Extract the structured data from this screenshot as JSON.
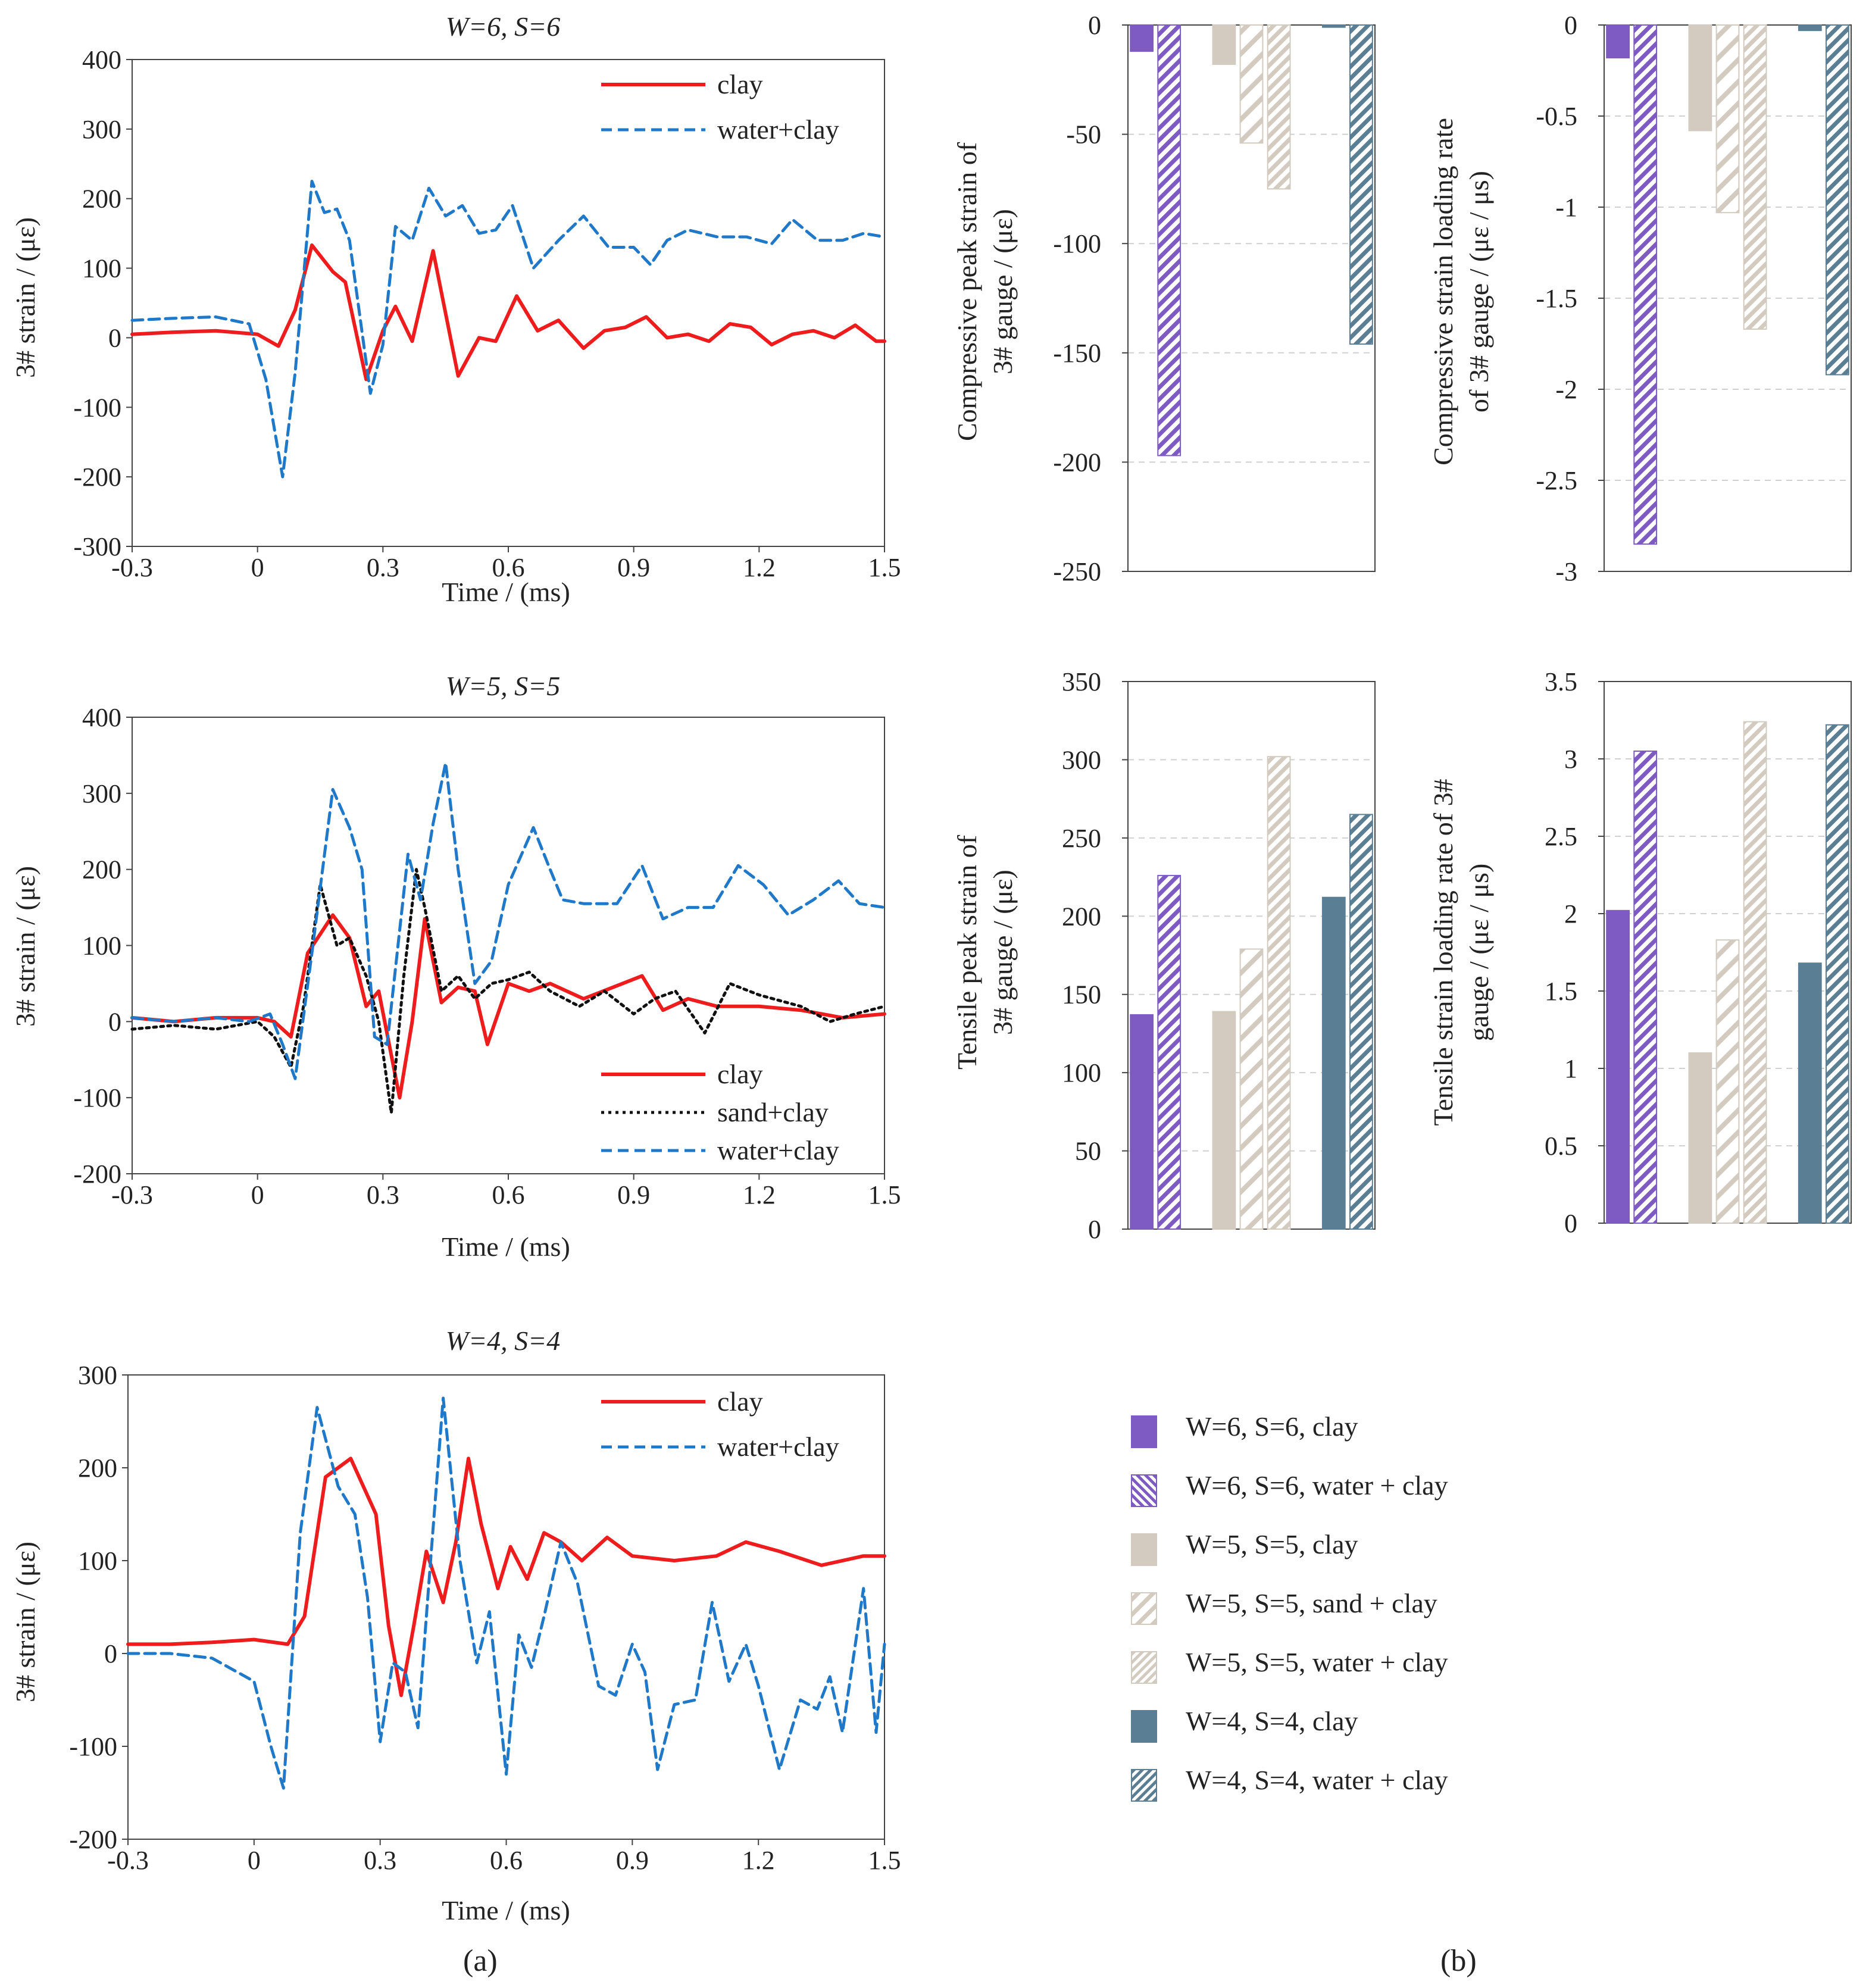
{
  "panel_labels": {
    "a": "(a)",
    "b": "(b)"
  },
  "colors": {
    "clay_line": "#ee1c1c",
    "water_line": "#1f78c8",
    "sand_line": "#111111",
    "w6": "#7e5bc2",
    "w5": "#d3cbc0",
    "w4": "#5a7f95"
  },
  "legend_b": [
    {
      "label": "W=6, S=6, clay",
      "color": "#7e5bc2",
      "pattern": "solid"
    },
    {
      "label": "W=6, S=6, water + clay",
      "color": "#7e5bc2",
      "pattern": "hatch-dense"
    },
    {
      "label": "W=5, S=5, clay",
      "color": "#d3cbc0",
      "pattern": "solid"
    },
    {
      "label": "W=5, S=5, sand + clay",
      "color": "#d3cbc0",
      "pattern": "hatch-sparse"
    },
    {
      "label": "W=5, S=5, water + clay",
      "color": "#d3cbc0",
      "pattern": "hatch-dense"
    },
    {
      "label": "W=4, S=4, clay",
      "color": "#5a7f95",
      "pattern": "solid"
    },
    {
      "label": "W=4, S=4, water + clay",
      "color": "#5a7f95",
      "pattern": "hatch-dense"
    }
  ],
  "chart_data": [
    {
      "id": "lineA",
      "type": "line",
      "title": "W=6, S=6",
      "xlabel": "Time / (ms)",
      "ylabel": "3# strain / (με)",
      "xlim": [
        -0.3,
        1.5
      ],
      "ylim": [
        -300,
        400
      ],
      "xticks": [
        -0.3,
        0,
        0.3,
        0.6,
        0.9,
        1.2,
        1.5
      ],
      "yticks": [
        -300,
        -200,
        -100,
        0,
        100,
        200,
        300,
        400
      ],
      "xtick_labels": [
        "-0.3",
        "0",
        "0.3",
        "0.6",
        "0.9",
        "1.2",
        "1.5"
      ],
      "ytick_labels": [
        "-300",
        "-200",
        "-100",
        "0",
        "100",
        "200",
        "300",
        "400"
      ],
      "series": [
        {
          "name": "clay",
          "style": "solid",
          "color": "#ee1c1c",
          "x": [
            -0.3,
            -0.2,
            -0.1,
            0,
            0.05,
            0.09,
            0.13,
            0.18,
            0.21,
            0.26,
            0.3,
            0.33,
            0.37,
            0.42,
            0.48,
            0.53,
            0.57,
            0.62,
            0.67,
            0.72,
            0.78,
            0.83,
            0.88,
            0.93,
            0.98,
            1.03,
            1.08,
            1.13,
            1.18,
            1.23,
            1.28,
            1.33,
            1.38,
            1.43,
            1.48,
            1.5
          ],
          "values": [
            5,
            8,
            10,
            5,
            -12,
            40,
            133,
            95,
            80,
            -60,
            10,
            45,
            -5,
            125,
            -55,
            0,
            -5,
            60,
            10,
            25,
            -15,
            10,
            15,
            30,
            0,
            5,
            -5,
            20,
            15,
            -10,
            5,
            10,
            0,
            18,
            -5,
            -5
          ]
        },
        {
          "name": "water+clay",
          "style": "dashed",
          "color": "#1f78c8",
          "x": [
            -0.3,
            -0.2,
            -0.1,
            -0.02,
            0.02,
            0.06,
            0.09,
            0.13,
            0.16,
            0.19,
            0.22,
            0.27,
            0.3,
            0.33,
            0.37,
            0.41,
            0.45,
            0.49,
            0.53,
            0.57,
            0.61,
            0.66,
            0.72,
            0.78,
            0.84,
            0.9,
            0.94,
            0.98,
            1.03,
            1.1,
            1.17,
            1.23,
            1.28,
            1.34,
            1.4,
            1.45,
            1.5
          ],
          "values": [
            25,
            28,
            30,
            20,
            -60,
            -200,
            -50,
            225,
            180,
            185,
            140,
            -80,
            -10,
            160,
            140,
            215,
            175,
            190,
            150,
            155,
            190,
            100,
            140,
            175,
            130,
            130,
            105,
            140,
            155,
            145,
            145,
            135,
            170,
            140,
            140,
            150,
            145
          ]
        }
      ],
      "legend": [
        {
          "label": "clay",
          "style": "solid",
          "color": "#ee1c1c"
        },
        {
          "label": "water+clay",
          "style": "dashed",
          "color": "#1f78c8"
        }
      ]
    },
    {
      "id": "lineB",
      "type": "line",
      "title": "W=5, S=5",
      "xlabel": "Time / (ms)",
      "ylabel": "3# strain / (με)",
      "xlim": [
        -0.3,
        1.5
      ],
      "ylim": [
        -200,
        400
      ],
      "xticks": [
        -0.3,
        0,
        0.3,
        0.6,
        0.9,
        1.2,
        1.5
      ],
      "yticks": [
        -200,
        -100,
        0,
        100,
        200,
        300,
        400
      ],
      "xtick_labels": [
        "-0.3",
        "0",
        "0.3",
        "0.6",
        "0.9",
        "1.2",
        "1.5"
      ],
      "ytick_labels": [
        "-200",
        "-100",
        "0",
        "100",
        "200",
        "300",
        "400"
      ],
      "series": [
        {
          "name": "clay",
          "style": "solid",
          "color": "#ee1c1c",
          "x": [
            -0.3,
            -0.2,
            -0.1,
            0,
            0.04,
            0.08,
            0.12,
            0.18,
            0.22,
            0.26,
            0.29,
            0.34,
            0.37,
            0.4,
            0.44,
            0.48,
            0.52,
            0.55,
            0.6,
            0.65,
            0.7,
            0.78,
            0.85,
            0.92,
            0.97,
            1.03,
            1.1,
            1.2,
            1.3,
            1.4,
            1.5
          ],
          "values": [
            5,
            0,
            5,
            5,
            0,
            -20,
            90,
            140,
            110,
            20,
            40,
            -100,
            0,
            135,
            25,
            45,
            40,
            -30,
            50,
            40,
            50,
            30,
            45,
            60,
            15,
            30,
            20,
            20,
            15,
            5,
            10
          ]
        },
        {
          "name": "sand+clay",
          "style": "dotted",
          "color": "#111111",
          "x": [
            -0.3,
            -0.2,
            -0.1,
            0,
            0.04,
            0.08,
            0.11,
            0.15,
            0.19,
            0.22,
            0.26,
            0.29,
            0.32,
            0.35,
            0.38,
            0.4,
            0.44,
            0.48,
            0.52,
            0.56,
            0.6,
            0.65,
            0.7,
            0.77,
            0.83,
            0.9,
            0.95,
            1.0,
            1.07,
            1.13,
            1.2,
            1.3,
            1.37,
            1.43,
            1.5
          ],
          "values": [
            -10,
            -5,
            -10,
            0,
            -20,
            -60,
            20,
            180,
            100,
            110,
            60,
            0,
            -120,
            60,
            200,
            150,
            40,
            60,
            30,
            50,
            55,
            65,
            40,
            20,
            40,
            10,
            30,
            40,
            -15,
            50,
            35,
            20,
            0,
            10,
            20
          ]
        },
        {
          "name": "water+clay",
          "style": "dashed",
          "color": "#1f78c8",
          "x": [
            -0.3,
            -0.2,
            -0.1,
            -0.02,
            0.03,
            0.06,
            0.09,
            0.13,
            0.18,
            0.22,
            0.25,
            0.28,
            0.31,
            0.36,
            0.39,
            0.42,
            0.45,
            0.48,
            0.52,
            0.56,
            0.6,
            0.66,
            0.7,
            0.73,
            0.78,
            0.86,
            0.92,
            0.97,
            1.03,
            1.09,
            1.15,
            1.21,
            1.27,
            1.33,
            1.39,
            1.44,
            1.5
          ],
          "values": [
            5,
            0,
            5,
            0,
            10,
            -30,
            -75,
            90,
            305,
            255,
            200,
            -20,
            -30,
            220,
            160,
            260,
            340,
            200,
            50,
            80,
            180,
            255,
            200,
            160,
            155,
            155,
            205,
            135,
            150,
            150,
            205,
            180,
            140,
            160,
            185,
            155,
            150
          ]
        }
      ],
      "legend": [
        {
          "label": "clay",
          "style": "solid",
          "color": "#ee1c1c"
        },
        {
          "label": "sand+clay",
          "style": "dotted",
          "color": "#111111"
        },
        {
          "label": "water+clay",
          "style": "dashed",
          "color": "#1f78c8"
        }
      ]
    },
    {
      "id": "lineC",
      "type": "line",
      "title": "W=4, S=4",
      "xlabel": "Time / (ms)",
      "ylabel": "3# strain / (με)",
      "xlim": [
        -0.3,
        1.5
      ],
      "ylim": [
        -200,
        300
      ],
      "xticks": [
        -0.3,
        0,
        0.3,
        0.6,
        0.9,
        1.2,
        1.5
      ],
      "yticks": [
        -200,
        -100,
        0,
        100,
        200,
        300
      ],
      "xtick_labels": [
        "-0.3",
        "0",
        "0.3",
        "0.6",
        "0.9",
        "1.2",
        "1.5"
      ],
      "ytick_labels": [
        "-200",
        "-100",
        "0",
        "100",
        "200",
        "300"
      ],
      "series": [
        {
          "name": "clay",
          "style": "solid",
          "color": "#ee1c1c",
          "x": [
            -0.3,
            -0.2,
            -0.1,
            0,
            0.08,
            0.12,
            0.17,
            0.23,
            0.29,
            0.32,
            0.35,
            0.38,
            0.41,
            0.45,
            0.48,
            0.51,
            0.54,
            0.58,
            0.61,
            0.65,
            0.69,
            0.73,
            0.78,
            0.84,
            0.9,
            1.0,
            1.1,
            1.17,
            1.25,
            1.35,
            1.45,
            1.5
          ],
          "values": [
            10,
            10,
            12,
            15,
            10,
            40,
            190,
            210,
            150,
            30,
            -45,
            30,
            110,
            55,
            120,
            210,
            140,
            70,
            115,
            80,
            130,
            120,
            100,
            125,
            105,
            100,
            105,
            120,
            110,
            95,
            105,
            105
          ]
        },
        {
          "name": "water+clay",
          "style": "dashed",
          "color": "#1f78c8",
          "x": [
            -0.3,
            -0.2,
            -0.1,
            0,
            0.04,
            0.07,
            0.11,
            0.15,
            0.2,
            0.24,
            0.27,
            0.3,
            0.33,
            0.36,
            0.39,
            0.42,
            0.45,
            0.49,
            0.53,
            0.56,
            0.6,
            0.63,
            0.66,
            0.69,
            0.73,
            0.77,
            0.82,
            0.86,
            0.9,
            0.93,
            0.96,
            1.0,
            1.05,
            1.09,
            1.13,
            1.17,
            1.2,
            1.25,
            1.3,
            1.34,
            1.37,
            1.4,
            1.45,
            1.48,
            1.5
          ],
          "values": [
            0,
            0,
            -5,
            -30,
            -100,
            -145,
            130,
            265,
            180,
            150,
            60,
            -95,
            -10,
            -20,
            -80,
            100,
            275,
            100,
            -10,
            45,
            -130,
            20,
            -15,
            40,
            120,
            75,
            -35,
            -45,
            10,
            -20,
            -125,
            -55,
            -50,
            55,
            -30,
            10,
            -35,
            -125,
            -50,
            -60,
            -25,
            -85,
            70,
            -85,
            10
          ]
        }
      ],
      "legend": [
        {
          "label": "clay",
          "style": "solid",
          "color": "#ee1c1c"
        },
        {
          "label": "water+clay",
          "style": "dashed",
          "color": "#1f78c8"
        }
      ]
    },
    {
      "id": "bar1",
      "type": "bar",
      "ylabel_lines": [
        "Compressive peak strain of",
        "3# gauge / (με)"
      ],
      "ylim": [
        -250,
        0
      ],
      "yticks": [
        -250,
        -200,
        -150,
        -100,
        -50,
        0
      ],
      "ytick_labels": [
        "-250",
        "-200",
        "-150",
        "-100",
        "-50",
        "0"
      ],
      "series_names": [
        "W=6, S=6, clay",
        "W=6, S=6, water + clay",
        "W=5, S=5, clay",
        "W=5, S=5, sand + clay",
        "W=5, S=5, water + clay",
        "W=4, S=4, clay",
        "W=4, S=4, water + clay"
      ],
      "values": [
        -12,
        -197,
        -18,
        -54,
        -75,
        -1,
        -146
      ]
    },
    {
      "id": "bar2",
      "type": "bar",
      "ylabel_lines": [
        "Compressive strain loading rate",
        "of  3# gauge / (με / μs)"
      ],
      "ylim": [
        -3,
        0
      ],
      "yticks": [
        -3,
        -2.5,
        -2,
        -1.5,
        -1,
        -0.5,
        0
      ],
      "ytick_labels": [
        "-3",
        "-2.5",
        "-2",
        "-1.5",
        "-1",
        "-0.5",
        "0"
      ],
      "series_names": [
        "W=6, S=6, clay",
        "W=6, S=6, water + clay",
        "W=5, S=5, clay",
        "W=5, S=5, sand + clay",
        "W=5, S=5, water + clay",
        "W=4, S=4, clay",
        "W=4, S=4, water + clay"
      ],
      "values": [
        -0.18,
        -2.85,
        -0.58,
        -1.03,
        -1.67,
        -0.03,
        -1.92
      ]
    },
    {
      "id": "bar3",
      "type": "bar",
      "ylabel_lines": [
        "Tensile peak strain of",
        "3# gauge / (με)"
      ],
      "ylim": [
        0,
        350
      ],
      "yticks": [
        0,
        50,
        100,
        150,
        200,
        250,
        300,
        350
      ],
      "ytick_labels": [
        "0",
        "50",
        "100",
        "150",
        "200",
        "250",
        "300",
        "350"
      ],
      "series_names": [
        "W=6, S=6, clay",
        "W=6, S=6, water + clay",
        "W=5, S=5, clay",
        "W=5, S=5, sand + clay",
        "W=5, S=5, water + clay",
        "W=4, S=4, clay",
        "W=4, S=4, water + clay"
      ],
      "values": [
        137,
        226,
        139,
        179,
        302,
        212,
        265
      ]
    },
    {
      "id": "bar4",
      "type": "bar",
      "ylabel_lines": [
        "Tensile strain loading rate of  3#",
        "gauge / (με / μs)"
      ],
      "ylim": [
        0,
        3.5
      ],
      "yticks": [
        0,
        0.5,
        1,
        1.5,
        2,
        2.5,
        3,
        3.5
      ],
      "ytick_labels": [
        "0",
        "0.5",
        "1",
        "1.5",
        "2",
        "2.5",
        "3",
        "3.5"
      ],
      "series_names": [
        "W=6, S=6, clay",
        "W=6, S=6, water + clay",
        "W=5, S=5, clay",
        "W=5, S=5, sand + clay",
        "W=5, S=5, water + clay",
        "W=4, S=4, clay",
        "W=4, S=4, water + clay"
      ],
      "values": [
        2.02,
        3.05,
        1.1,
        1.83,
        3.24,
        1.68,
        3.22
      ]
    }
  ]
}
